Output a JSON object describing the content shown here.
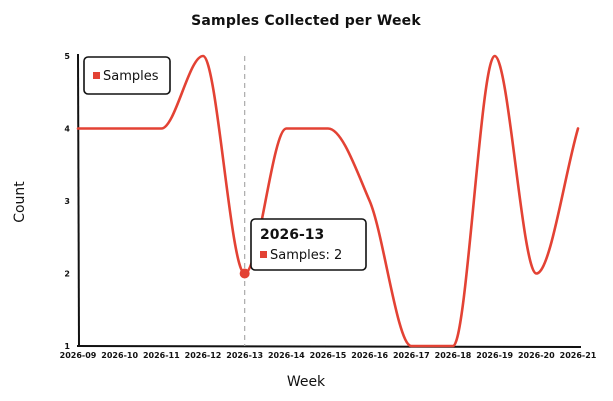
{
  "chart_data": {
    "type": "line",
    "title": "Samples Collected per Week",
    "xlabel": "Week",
    "ylabel": "Count",
    "ylim": [
      1,
      5
    ],
    "yticks": [
      "1",
      "2",
      "3",
      "4",
      "5"
    ],
    "categories": [
      "2026-09",
      "2026-10",
      "2026-11",
      "2026-12",
      "2026-13",
      "2026-14",
      "2026-15",
      "2026-16",
      "2026-17",
      "2026-18",
      "2026-19",
      "2026-20",
      "2026-21"
    ],
    "series": [
      {
        "name": "Samples",
        "color": "#e34234",
        "values": [
          4,
          4,
          4,
          5,
          2,
          4,
          4,
          3,
          1,
          1,
          5,
          2,
          4
        ]
      }
    ],
    "legend": {
      "position": "top-left"
    },
    "grid": false,
    "tooltip": {
      "title": "2026-13",
      "label": "Samples: 2",
      "index": 4
    }
  }
}
